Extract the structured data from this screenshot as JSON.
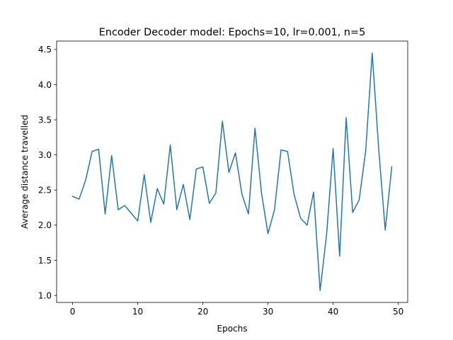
{
  "chart_data": {
    "type": "line",
    "title": "Encoder Decoder model: Epochs=10, lr=0.001, n=5",
    "xlabel": "Epochs",
    "ylabel": "Average distance travelled",
    "xlim": [
      -2.45,
      51.45
    ],
    "ylim": [
      0.9,
      4.62
    ],
    "xticks": [
      0,
      10,
      20,
      30,
      40,
      50
    ],
    "xtick_labels": [
      "0",
      "10",
      "20",
      "30",
      "40",
      "50"
    ],
    "yticks": [
      1.0,
      1.5,
      2.0,
      2.5,
      3.0,
      3.5,
      4.0,
      4.5
    ],
    "ytick_labels": [
      "1.0",
      "1.5",
      "2.0",
      "2.5",
      "3.0",
      "3.5",
      "4.0",
      "4.5"
    ],
    "grid": false,
    "color": "#1f77b4",
    "series": [
      {
        "x": [
          0,
          1,
          2,
          3,
          4,
          5,
          6,
          7,
          8,
          9,
          10,
          11,
          12,
          13,
          14,
          15,
          16,
          17,
          18,
          19,
          20,
          21,
          22,
          23,
          24,
          25,
          26,
          27,
          28,
          29,
          30,
          31,
          32,
          33,
          34,
          35,
          36,
          37,
          38,
          39,
          40,
          41,
          42,
          43,
          44,
          45,
          46,
          47,
          48,
          49
        ],
        "values": [
          2.41,
          2.37,
          2.64,
          3.05,
          3.08,
          2.16,
          2.99,
          2.22,
          2.28,
          2.17,
          2.06,
          2.72,
          2.04,
          2.52,
          2.3,
          3.14,
          2.22,
          2.58,
          2.08,
          2.8,
          2.83,
          2.31,
          2.46,
          3.48,
          2.75,
          3.03,
          2.44,
          2.16,
          3.38,
          2.46,
          1.88,
          2.22,
          3.07,
          3.05,
          2.44,
          2.1,
          2.0,
          2.47,
          1.07,
          1.87,
          3.09,
          1.56,
          3.53,
          2.18,
          2.36,
          3.06,
          4.45,
          3.08,
          1.93,
          2.83
        ]
      }
    ]
  }
}
